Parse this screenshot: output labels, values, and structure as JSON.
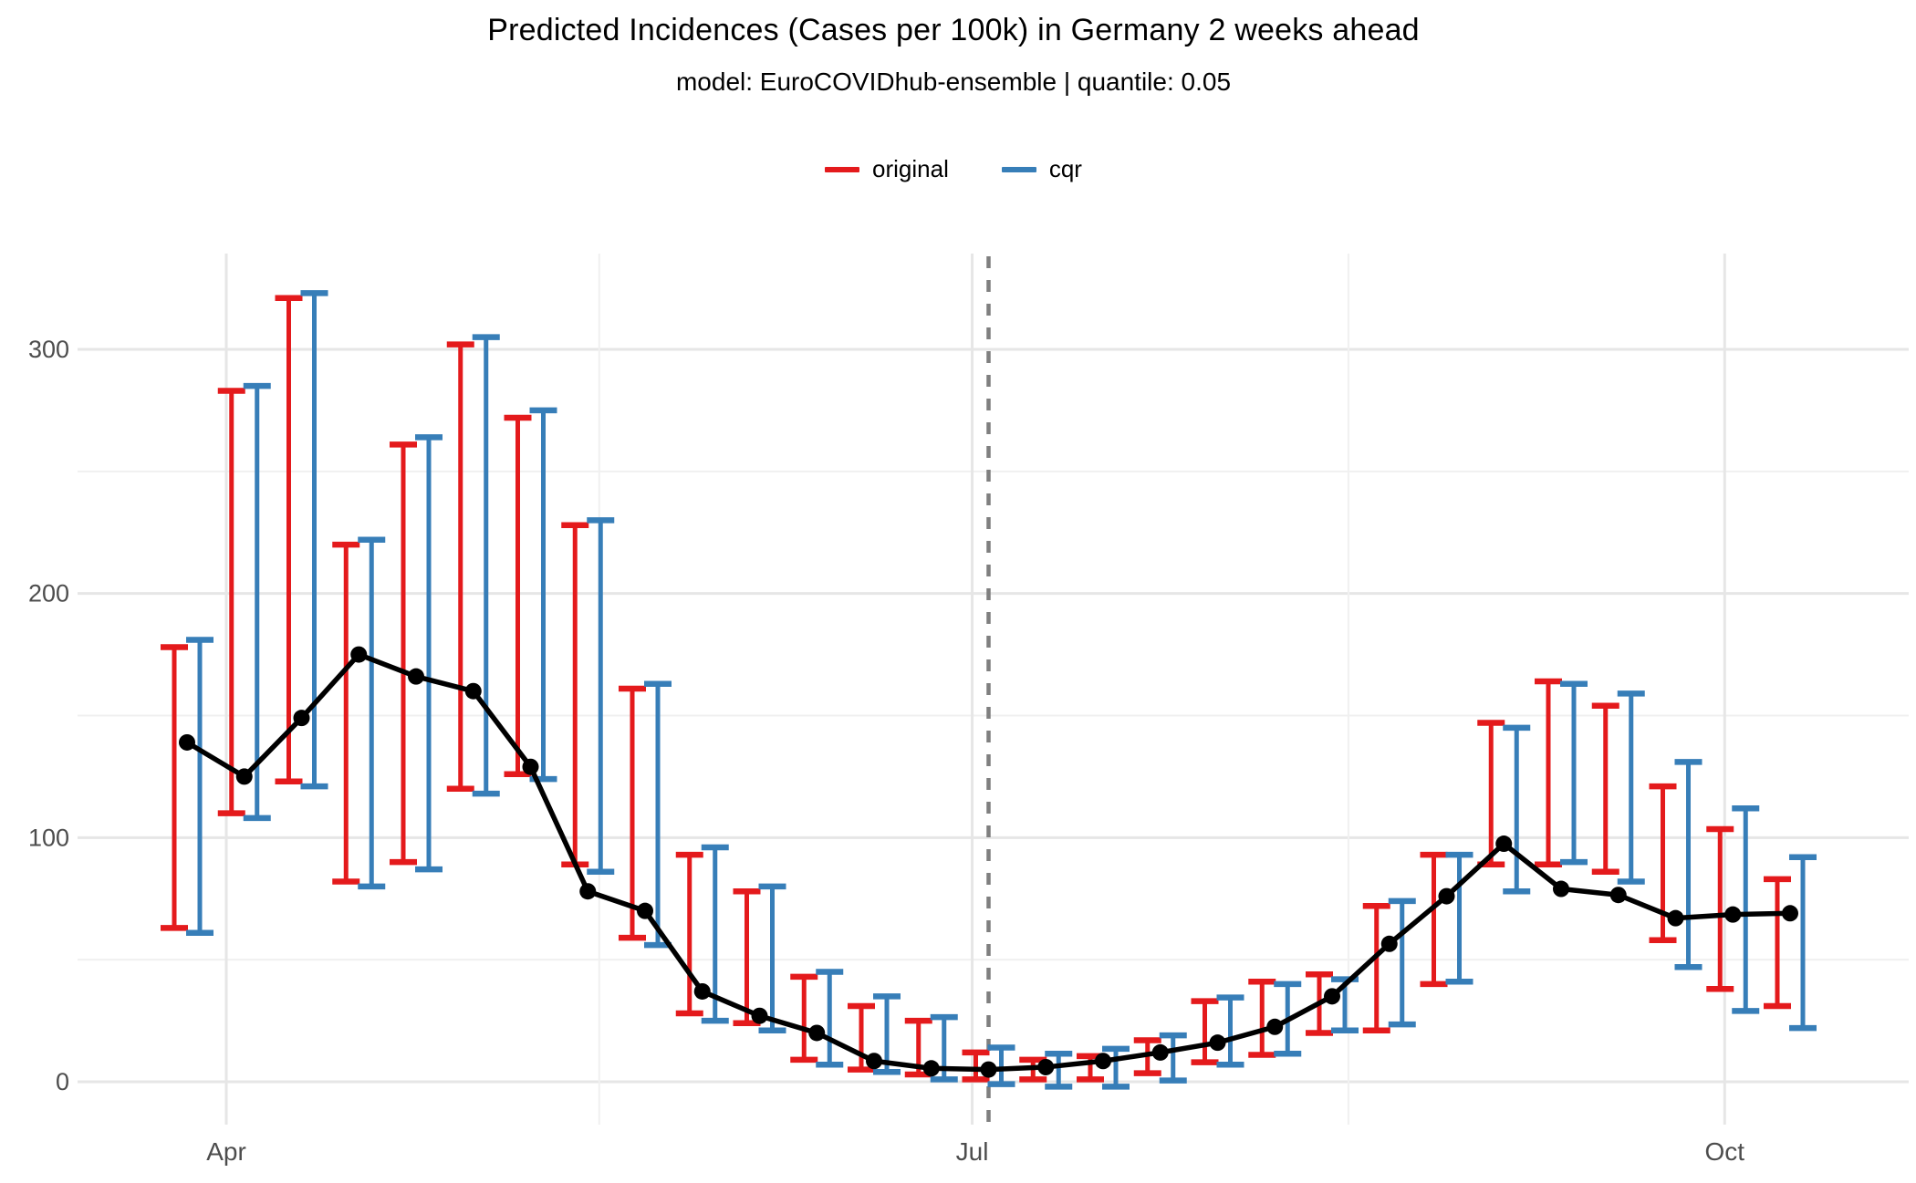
{
  "chart_data": {
    "type": "line+errorbar",
    "title": "Predicted Incidences (Cases per 100k) in Germany 2 weeks ahead",
    "subtitle": "model: EuroCOVIDhub-ensemble   |   quantile: 0.05",
    "legend": [
      {
        "label": "original",
        "color": "#E41A1C"
      },
      {
        "label": "cqr",
        "color": "#377EB8"
      }
    ],
    "colors": {
      "observed_line": "#000000",
      "grid_major": "#E6E6E6",
      "grid_minor": "#F0F0F0",
      "axis_text": "#4D4D4D",
      "vline": "#7F7F7F",
      "background": "#FFFFFF"
    },
    "x_axis": {
      "tick_labels": [
        "Apr",
        "Jul",
        "Oct"
      ],
      "tick_days": [
        4.8,
        96,
        188
      ],
      "minor_tick_days": [
        50.4,
        142
      ],
      "points_start_day": 0,
      "week_step_days": 7
    },
    "y_axis": {
      "tick_labels": [
        "0",
        "100",
        "200",
        "300"
      ],
      "ticks": [
        0,
        100,
        200,
        300
      ],
      "minor_ticks": [
        50,
        150,
        250
      ],
      "range": [
        -20,
        339
      ]
    },
    "vline": {
      "day": 98,
      "style": "dashed"
    },
    "observed": [
      139,
      125,
      149,
      175,
      166,
      160,
      129,
      78,
      70,
      37,
      27,
      20,
      8.5,
      5.5,
      5,
      6,
      8.5,
      12,
      16,
      22.5,
      35,
      56.5,
      76,
      97.5,
      79,
      76.5,
      67,
      68.5,
      69
    ],
    "series": [
      {
        "name": "original",
        "type": "errorbar",
        "color": "#E41A1C",
        "intervals": [
          [
            63,
            178
          ],
          [
            110,
            283
          ],
          [
            123,
            321
          ],
          [
            82,
            220
          ],
          [
            90,
            261
          ],
          [
            120,
            302
          ],
          [
            126,
            272
          ],
          [
            89,
            228
          ],
          [
            59,
            161
          ],
          [
            28,
            93
          ],
          [
            24,
            78
          ],
          [
            9,
            43
          ],
          [
            5,
            31
          ],
          [
            3,
            25
          ],
          [
            1,
            12
          ],
          [
            1,
            9
          ],
          [
            1,
            10.5
          ],
          [
            3.5,
            17
          ],
          [
            8,
            33
          ],
          [
            11,
            41
          ],
          [
            20,
            44
          ],
          [
            21,
            72
          ],
          [
            40,
            93
          ],
          [
            89,
            147
          ],
          [
            89,
            164
          ],
          [
            86,
            154
          ],
          [
            58,
            121
          ],
          [
            38,
            103.5
          ],
          [
            31,
            83
          ]
        ]
      },
      {
        "name": "cqr",
        "type": "errorbar",
        "color": "#377EB8",
        "intervals": [
          [
            61,
            181
          ],
          [
            108,
            285
          ],
          [
            121,
            323
          ],
          [
            80,
            222
          ],
          [
            87,
            264
          ],
          [
            118,
            305
          ],
          [
            124,
            275
          ],
          [
            86,
            230
          ],
          [
            56,
            163
          ],
          [
            25,
            96
          ],
          [
            21,
            80
          ],
          [
            7,
            45
          ],
          [
            4,
            35
          ],
          [
            1,
            26.5
          ],
          [
            -1,
            14
          ],
          [
            -2,
            11.5
          ],
          [
            -2,
            13.5
          ],
          [
            0.5,
            19
          ],
          [
            7,
            34.5
          ],
          [
            11.5,
            40
          ],
          [
            21,
            42
          ],
          [
            23.5,
            74
          ],
          [
            41,
            93
          ],
          [
            78,
            145
          ],
          [
            90,
            163
          ],
          [
            82,
            159
          ],
          [
            47,
            131
          ],
          [
            29,
            112
          ],
          [
            22,
            92
          ]
        ]
      },
      {
        "name": "observed",
        "type": "line+points",
        "color": "#000000"
      }
    ]
  }
}
